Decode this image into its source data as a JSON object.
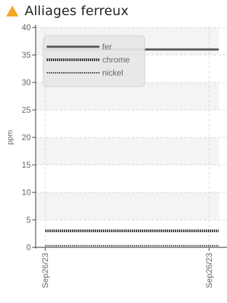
{
  "header": {
    "title": "Alliages ferreux",
    "icon": "warning-triangle-icon",
    "icon_color": "#f5a623"
  },
  "chart_data": {
    "type": "line",
    "title": "Alliages ferreux",
    "ylabel": "ppm",
    "xlabel": "",
    "ylim": [
      0,
      40
    ],
    "yticks": [
      0,
      5,
      10,
      15,
      20,
      25,
      30,
      35,
      40
    ],
    "x": [
      "Sep26/23",
      "Sep26/23"
    ],
    "grid": true,
    "legend_position": "top-left",
    "series": [
      {
        "name": "fer",
        "values": [
          36,
          36
        ],
        "color": "#555555",
        "style": "solid"
      },
      {
        "name": "chrome",
        "values": [
          3,
          3
        ],
        "color": "#444444",
        "style": "dotted-thick"
      },
      {
        "name": "nickel",
        "values": [
          0.3,
          0.3
        ],
        "color": "#555555",
        "style": "dotted-thin"
      }
    ]
  }
}
